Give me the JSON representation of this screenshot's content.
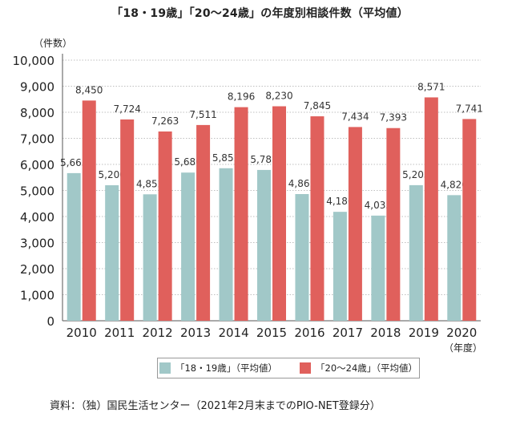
{
  "title": "「18・19歳」「20〜24歳」の年度別相談件数（平均値）",
  "source": "資料：（独）国民生活センター（2021年2月末までのPIO-NET登録分）",
  "colors": {
    "series1": "#a1c8c8",
    "series2": "#e0605c",
    "axis": "#555555",
    "grid": "#aaaaaa"
  },
  "chart_data": {
    "type": "bar",
    "title": "「18・19歳」「20〜24歳」の年度別相談件数（平均値）",
    "xlabel": "（年度）",
    "ylabel": "（件数）",
    "ylim": [
      0,
      10000
    ],
    "yticks": [
      "0",
      "1,000",
      "2,000",
      "3,000",
      "4,000",
      "5,000",
      "6,000",
      "7,000",
      "8,000",
      "9,000",
      "10,000"
    ],
    "categories": [
      "2010",
      "2011",
      "2012",
      "2013",
      "2014",
      "2015",
      "2016",
      "2017",
      "2018",
      "2019",
      "2020"
    ],
    "legend_position": "bottom",
    "grid": true,
    "series": [
      {
        "name": "「18・19歳」（平均値）",
        "values": [
          5665,
          5200,
          4852,
          5686,
          5852,
          5787,
          4861,
          4180,
          4035,
          5203,
          4820
        ]
      },
      {
        "name": "「20〜24歳」（平均値）",
        "values": [
          8450,
          7724,
          7263,
          7511,
          8196,
          8230,
          7845,
          7434,
          7393,
          8571,
          7741
        ]
      }
    ]
  }
}
